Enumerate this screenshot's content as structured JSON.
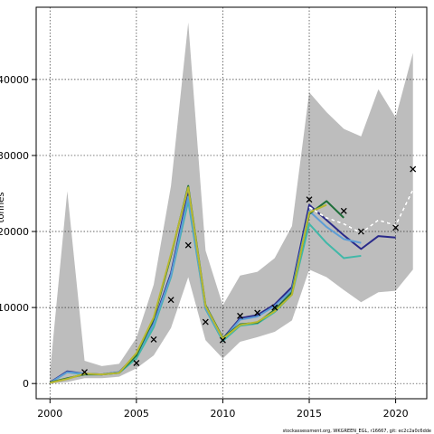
{
  "chart_data": {
    "type": "line",
    "title": "",
    "xlabel": "",
    "ylabel": "tonnes",
    "x_ticks": [
      2000,
      2005,
      2010,
      2015,
      2020
    ],
    "y_ticks": [
      0,
      10000,
      20000,
      30000,
      40000
    ],
    "y_tick_labels": [
      "0",
      "10000",
      "20000",
      "30000",
      "40000"
    ],
    "xlim": [
      1999.2,
      2021.8
    ],
    "ylim": [
      -2000,
      49500
    ],
    "grid": true,
    "legend": "none",
    "confidence_band": {
      "color": "#bdbdbd",
      "x": [
        2000,
        2001,
        2002,
        2003,
        2004,
        2005,
        2006,
        2007,
        2008,
        2009,
        2010,
        2011,
        2012,
        2013,
        2014,
        2015,
        2016,
        2017,
        2018,
        2019,
        2020,
        2021
      ],
      "upper": [
        1500,
        25300,
        3000,
        2300,
        2600,
        6000,
        13000,
        26000,
        47500,
        17500,
        10300,
        14200,
        14700,
        16500,
        20700,
        38300,
        35700,
        33500,
        32500,
        38700,
        35000,
        43500
      ],
      "lower": [
        0,
        200,
        700,
        700,
        900,
        2000,
        3700,
        7300,
        14000,
        5700,
        3300,
        5500,
        6100,
        6800,
        8300,
        15000,
        14000,
        12300,
        10700,
        12000,
        12200,
        15000
      ]
    },
    "series": [
      {
        "color": "#40b8a8",
        "x": [
          2000,
          2001,
          2002,
          2003,
          2004,
          2005,
          2006,
          2007,
          2008,
          2009,
          2010,
          2011,
          2012,
          2013,
          2014,
          2015,
          2016,
          2017,
          2018
        ],
        "values": [
          100,
          1500,
          1200,
          1200,
          1400,
          3300,
          7400,
          14000,
          24000,
          9800,
          5600,
          7600,
          7900,
          9400,
          11700,
          21000,
          18500,
          16500,
          16800
        ]
      },
      {
        "color": "#2a2a8a",
        "x": [
          2000,
          2001,
          2002,
          2003,
          2004,
          2005,
          2006,
          2007,
          2008,
          2009,
          2010,
          2011,
          2012,
          2013,
          2014,
          2015,
          2016,
          2017,
          2018,
          2019,
          2020
        ],
        "values": [
          150,
          1600,
          1300,
          1200,
          1500,
          3800,
          8000,
          14500,
          25200,
          10000,
          5900,
          8600,
          9000,
          10400,
          12700,
          23500,
          21500,
          19500,
          17700,
          19400,
          19200
        ]
      },
      {
        "color": "#5e9ed6",
        "x": [
          2000,
          2001,
          2002,
          2003,
          2004,
          2005,
          2006,
          2007,
          2008,
          2009,
          2010,
          2011,
          2012,
          2013,
          2014,
          2015,
          2016,
          2017,
          2018
        ],
        "values": [
          100,
          1500,
          1300,
          1200,
          1500,
          3700,
          7800,
          14200,
          24600,
          9900,
          5800,
          8400,
          8800,
          10200,
          12300,
          22700,
          20600,
          19000,
          18500
        ]
      },
      {
        "color": "#1f6f3a",
        "x": [
          2000,
          2001,
          2002,
          2003,
          2004,
          2005,
          2006,
          2007,
          2008,
          2009,
          2010,
          2011,
          2012,
          2013,
          2014,
          2015,
          2016,
          2017
        ],
        "values": [
          150,
          700,
          1200,
          1200,
          1400,
          3700,
          8500,
          16800,
          26000,
          10300,
          6000,
          7800,
          8000,
          9700,
          12000,
          22300,
          24000,
          21800
        ]
      },
      {
        "color": "#b8b830",
        "x": [
          2000,
          2001,
          2002,
          2003,
          2004,
          2005,
          2006,
          2007,
          2008,
          2009,
          2010,
          2011,
          2012,
          2013,
          2014,
          2015,
          2016
        ],
        "values": [
          100,
          600,
          1300,
          1200,
          1400,
          4000,
          8700,
          17000,
          25800,
          10200,
          5900,
          7700,
          8100,
          9500,
          11700,
          22500,
          23500
        ]
      },
      {
        "color": "#000000",
        "dashed": true,
        "x": [
          2015,
          2016,
          2017,
          2018,
          2019,
          2020,
          2021
        ],
        "values": [
          23200,
          21800,
          21000,
          19800,
          21500,
          20800,
          25500
        ]
      },
      {
        "color": "#ffffff",
        "dashed": true,
        "x": [
          2015,
          2016,
          2017,
          2018,
          2019,
          2020,
          2021
        ],
        "values": [
          23200,
          21800,
          21000,
          19800,
          21500,
          20800,
          25500
        ]
      }
    ],
    "observations": {
      "marker": "x",
      "x": [
        2002,
        2005,
        2006,
        2007,
        2008,
        2009,
        2010,
        2011,
        2012,
        2013,
        2015,
        2017,
        2018,
        2020,
        2021
      ],
      "values": [
        1500,
        2700,
        5800,
        11000,
        18200,
        8100,
        5700,
        8900,
        9300,
        10000,
        24200,
        22700,
        20000,
        20500,
        28200
      ]
    },
    "footer": "stockassessment.org, WKGREEN_EGL, r16667, git: ec2c2a0c6dde"
  }
}
